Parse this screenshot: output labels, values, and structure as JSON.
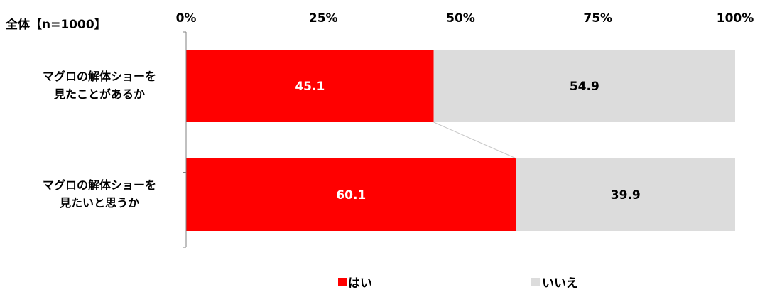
{
  "chart_data": {
    "type": "bar",
    "orientation": "horizontal",
    "stacked": true,
    "subtitle": "全体【n=1000】",
    "categories": [
      [
        "マグロの解体ショーを",
        "見たことがあるか"
      ],
      [
        "マグロの解体ショーを",
        "見たいと思うか"
      ]
    ],
    "series": [
      {
        "name": "はい",
        "values": [
          45.1,
          60.1
        ],
        "color": "#ff0000",
        "label_color": "#ffffff"
      },
      {
        "name": "いいえ",
        "values": [
          54.9,
          39.9
        ],
        "color": "#dcdcdc",
        "label_color": "#000000"
      }
    ],
    "x_ticks": [
      "0%",
      "25%",
      "50%",
      "75%",
      "100%"
    ],
    "xlim": [
      0,
      100
    ],
    "value_labels": [
      [
        "45.1",
        "54.9"
      ],
      [
        "60.1",
        "39.9"
      ]
    ],
    "legend_position": "bottom",
    "series_lines": true,
    "grid": false
  }
}
